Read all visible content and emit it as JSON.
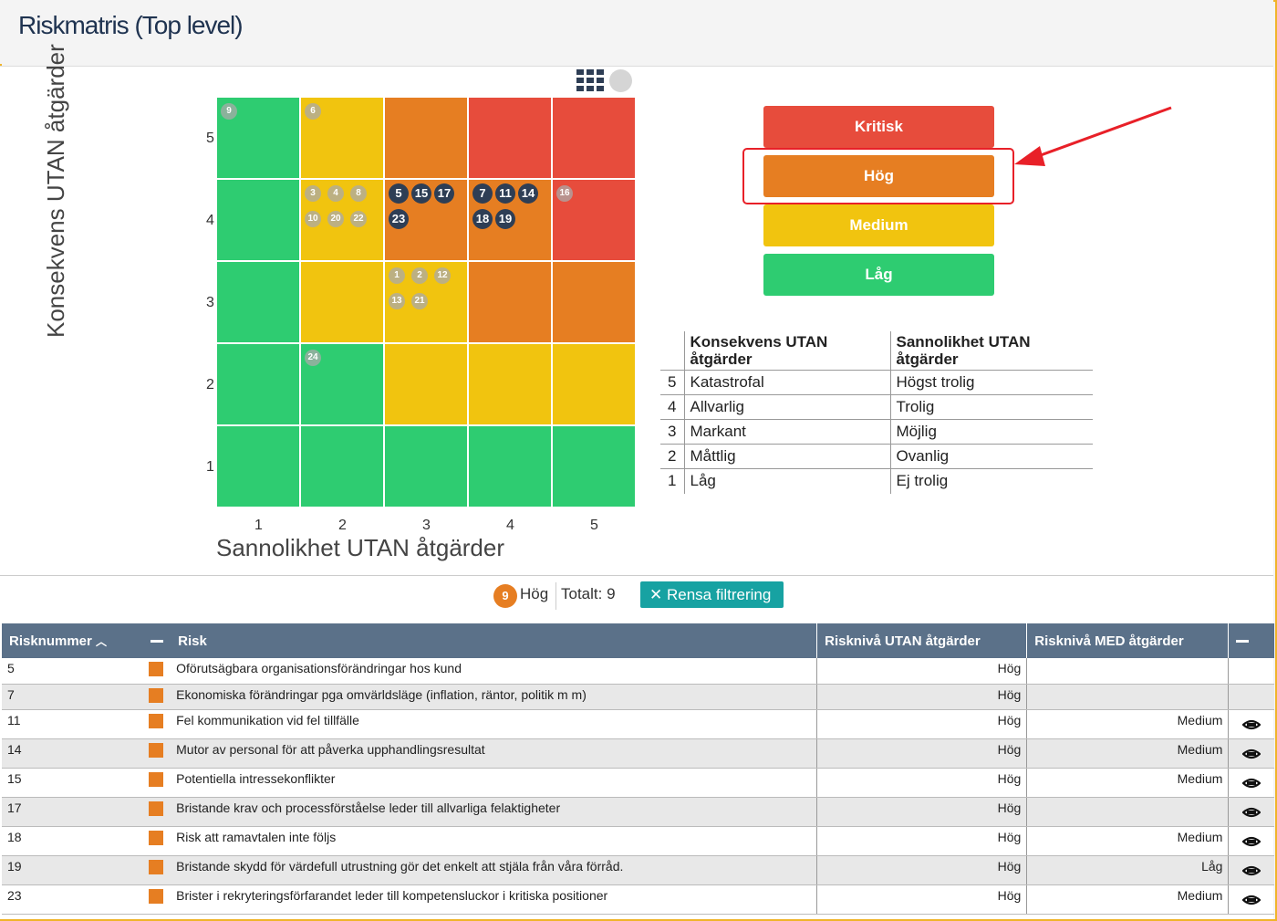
{
  "page": {
    "title": "Riskmatris (Top level)"
  },
  "colors": {
    "critical": "#e74c3c",
    "high": "#e67e22",
    "medium": "#f1c40f",
    "low": "#2ecc71",
    "dark_bubble": "#2e3e55",
    "header_bg": "#5b7189",
    "teal": "#17a2a2"
  },
  "matrix": {
    "y_title": "Konsekvens UTAN åtgärder",
    "x_title": "Sannolikhet UTAN åtgärder",
    "y_ticks": [
      "5",
      "4",
      "3",
      "2",
      "1"
    ],
    "x_ticks": [
      "1",
      "2",
      "3",
      "4",
      "5"
    ],
    "grid": [
      [
        "low",
        "medium",
        "high",
        "critical",
        "critical"
      ],
      [
        "low",
        "medium",
        "high",
        "high",
        "critical"
      ],
      [
        "low",
        "medium",
        "medium",
        "high",
        "high"
      ],
      [
        "low",
        "low",
        "medium",
        "medium",
        "medium"
      ],
      [
        "low",
        "low",
        "low",
        "low",
        "low"
      ]
    ],
    "risks": [
      {
        "id": "9",
        "konsekvens": 5,
        "sannolikhet": 1,
        "active": false
      },
      {
        "id": "6",
        "konsekvens": 5,
        "sannolikhet": 2,
        "active": false
      },
      {
        "id": "3",
        "konsekvens": 4,
        "sannolikhet": 2,
        "active": false
      },
      {
        "id": "4",
        "konsekvens": 4,
        "sannolikhet": 2,
        "active": false
      },
      {
        "id": "8",
        "konsekvens": 4,
        "sannolikhet": 2,
        "active": false
      },
      {
        "id": "10",
        "konsekvens": 4,
        "sannolikhet": 2,
        "active": false
      },
      {
        "id": "20",
        "konsekvens": 4,
        "sannolikhet": 2,
        "active": false
      },
      {
        "id": "22",
        "konsekvens": 4,
        "sannolikhet": 2,
        "active": false
      },
      {
        "id": "5",
        "konsekvens": 4,
        "sannolikhet": 3,
        "active": true
      },
      {
        "id": "15",
        "konsekvens": 4,
        "sannolikhet": 3,
        "active": true
      },
      {
        "id": "17",
        "konsekvens": 4,
        "sannolikhet": 3,
        "active": true
      },
      {
        "id": "23",
        "konsekvens": 4,
        "sannolikhet": 3,
        "active": true
      },
      {
        "id": "7",
        "konsekvens": 4,
        "sannolikhet": 4,
        "active": true
      },
      {
        "id": "11",
        "konsekvens": 4,
        "sannolikhet": 4,
        "active": true
      },
      {
        "id": "14",
        "konsekvens": 4,
        "sannolikhet": 4,
        "active": true
      },
      {
        "id": "18",
        "konsekvens": 4,
        "sannolikhet": 4,
        "active": true
      },
      {
        "id": "19",
        "konsekvens": 4,
        "sannolikhet": 4,
        "active": true
      },
      {
        "id": "16",
        "konsekvens": 4,
        "sannolikhet": 5,
        "active": false
      },
      {
        "id": "1",
        "konsekvens": 3,
        "sannolikhet": 3,
        "active": false
      },
      {
        "id": "2",
        "konsekvens": 3,
        "sannolikhet": 3,
        "active": false
      },
      {
        "id": "12",
        "konsekvens": 3,
        "sannolikhet": 3,
        "active": false
      },
      {
        "id": "13",
        "konsekvens": 3,
        "sannolikhet": 3,
        "active": false
      },
      {
        "id": "21",
        "konsekvens": 3,
        "sannolikhet": 3,
        "active": false
      },
      {
        "id": "24",
        "konsekvens": 2,
        "sannolikhet": 2,
        "active": false
      }
    ]
  },
  "levels": {
    "critical": "Kritisk",
    "high": "Hög",
    "medium": "Medium",
    "low": "Låg"
  },
  "scale": {
    "col1": "Konsekvens UTAN åtgärder",
    "col2": "Sannolikhet UTAN åtgärder",
    "rows": [
      {
        "n": "5",
        "k": "Katastrofal",
        "s": "Högst trolig"
      },
      {
        "n": "4",
        "k": "Allvarlig",
        "s": "Trolig"
      },
      {
        "n": "3",
        "k": "Markant",
        "s": "Möjlig"
      },
      {
        "n": "2",
        "k": "Måttlig",
        "s": "Ovanlig"
      },
      {
        "n": "1",
        "k": "Låg",
        "s": "Ej trolig"
      }
    ]
  },
  "filter": {
    "count": "9",
    "level": "Hög",
    "total": "Totalt: 9",
    "clear": "Rensa filtrering"
  },
  "table": {
    "headers": {
      "nr": "Risknummer",
      "risk": "Risk",
      "utan": "Risknivå UTAN åtgärder",
      "med": "Risknivå MED åtgärder"
    },
    "rows": [
      {
        "nr": "5",
        "risk": "Oförutsägbara organisationsförändringar hos kund",
        "utan": "Hög",
        "med": "",
        "eye": false
      },
      {
        "nr": "7",
        "risk": "Ekonomiska förändringar pga omvärldsläge (inflation, räntor, politik m m)",
        "utan": "Hög",
        "med": "",
        "eye": false
      },
      {
        "nr": "11",
        "risk": "Fel kommunikation vid fel tillfälle",
        "utan": "Hög",
        "med": "Medium",
        "eye": true
      },
      {
        "nr": "14",
        "risk": "Mutor av personal för att påverka upphandlingsresultat",
        "utan": "Hög",
        "med": "Medium",
        "eye": true
      },
      {
        "nr": "15",
        "risk": "Potentiella intressekonflikter",
        "utan": "Hög",
        "med": "Medium",
        "eye": true
      },
      {
        "nr": "17",
        "risk": "Bristande krav och processförståelse leder till allvarliga felaktigheter",
        "utan": "Hög",
        "med": "",
        "eye": true
      },
      {
        "nr": "18",
        "risk": "Risk att ramavtalen inte följs",
        "utan": "Hög",
        "med": "Medium",
        "eye": true
      },
      {
        "nr": "19",
        "risk": "Bristande skydd för värdefull utrustning gör det enkelt att stjäla från våra förråd.",
        "utan": "Hög",
        "med": "Låg",
        "eye": true
      },
      {
        "nr": "23",
        "risk": "Brister i rekryteringsförfarandet leder till kompetensluckor i kritiska positioner",
        "utan": "Hög",
        "med": "Medium",
        "eye": true
      }
    ]
  }
}
